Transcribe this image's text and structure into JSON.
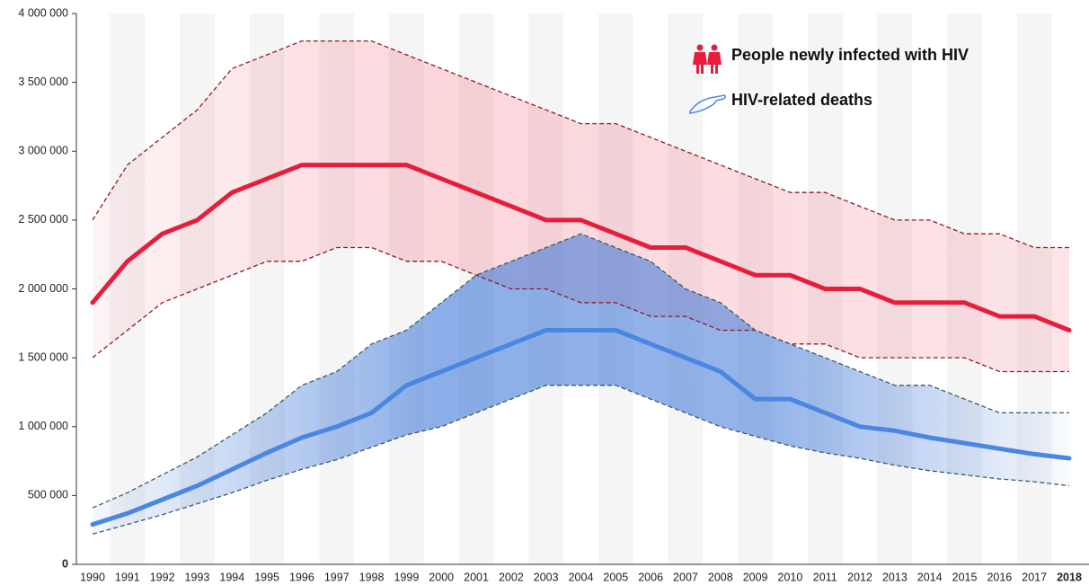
{
  "chart_data": {
    "type": "line",
    "categories": [
      "1990",
      "1991",
      "1992",
      "1993",
      "1994",
      "1995",
      "1996",
      "1997",
      "1998",
      "1999",
      "2000",
      "2001",
      "2002",
      "2003",
      "2004",
      "2005",
      "2006",
      "2007",
      "2008",
      "2009",
      "2010",
      "2011",
      "2012",
      "2013",
      "2014",
      "2015",
      "2016",
      "2017",
      "2018"
    ],
    "ylim": [
      0,
      4000000
    ],
    "yticks": [
      0,
      {
        "value": 500000,
        "label": "500 000"
      },
      {
        "value": 1000000,
        "label": "1 000 000"
      },
      {
        "value": 1500000,
        "label": "1 500 000"
      },
      {
        "value": 2000000,
        "label": "2 000 000"
      },
      {
        "value": 2500000,
        "label": "2 500 000"
      },
      {
        "value": 3000000,
        "label": "3 000 000"
      },
      {
        "value": 3500000,
        "label": "3 500 000"
      },
      {
        "value": 4000000,
        "label": "4 000 000"
      }
    ],
    "series": [
      {
        "name": "People newly infected with HIV",
        "color": "#e61e3c",
        "band_color": "#e8203c",
        "bound_color": "#8a1c2c",
        "values": [
          1900000,
          2200000,
          2400000,
          2500000,
          2700000,
          2800000,
          2900000,
          2900000,
          2900000,
          2900000,
          2800000,
          2700000,
          2600000,
          2500000,
          2500000,
          2400000,
          2300000,
          2300000,
          2200000,
          2100000,
          2100000,
          2000000,
          2000000,
          1900000,
          1900000,
          1900000,
          1800000,
          1800000,
          1700000
        ],
        "upper": [
          2500000,
          2900000,
          3100000,
          3300000,
          3600000,
          3700000,
          3800000,
          3800000,
          3800000,
          3700000,
          3600000,
          3500000,
          3400000,
          3300000,
          3200000,
          3200000,
          3100000,
          3000000,
          2900000,
          2800000,
          2700000,
          2700000,
          2600000,
          2500000,
          2500000,
          2400000,
          2400000,
          2300000,
          2300000
        ],
        "lower": [
          1500000,
          1700000,
          1900000,
          2000000,
          2100000,
          2200000,
          2200000,
          2300000,
          2300000,
          2200000,
          2200000,
          2100000,
          2000000,
          2000000,
          1900000,
          1900000,
          1800000,
          1800000,
          1700000,
          1700000,
          1600000,
          1600000,
          1500000,
          1500000,
          1500000,
          1500000,
          1400000,
          1400000,
          1400000
        ]
      },
      {
        "name": "HIV-related deaths",
        "color": "#4a86e2",
        "band_color": "#3f78d8",
        "bound_color": "#3d5b66",
        "values": [
          290000,
          370000,
          470000,
          570000,
          690000,
          810000,
          920000,
          1000000,
          1100000,
          1300000,
          1400000,
          1500000,
          1600000,
          1700000,
          1700000,
          1700000,
          1600000,
          1500000,
          1400000,
          1200000,
          1200000,
          1100000,
          1000000,
          970000,
          920000,
          880000,
          840000,
          800000,
          770000
        ],
        "upper": [
          410000,
          520000,
          650000,
          780000,
          940000,
          1100000,
          1300000,
          1400000,
          1600000,
          1700000,
          1900000,
          2100000,
          2200000,
          2300000,
          2400000,
          2300000,
          2200000,
          2000000,
          1900000,
          1700000,
          1600000,
          1500000,
          1400000,
          1300000,
          1300000,
          1200000,
          1100000,
          1100000,
          1100000
        ],
        "lower": [
          220000,
          290000,
          360000,
          440000,
          520000,
          610000,
          690000,
          760000,
          850000,
          940000,
          1000000,
          1100000,
          1200000,
          1300000,
          1300000,
          1300000,
          1200000,
          1100000,
          1000000,
          930000,
          860000,
          810000,
          770000,
          720000,
          680000,
          650000,
          620000,
          600000,
          570000
        ]
      }
    ]
  }
}
